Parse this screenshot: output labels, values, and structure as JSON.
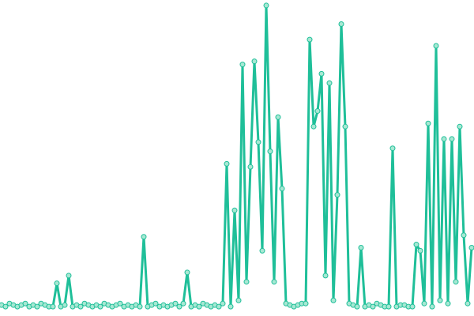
{
  "chart_data": {
    "type": "line",
    "x": [
      0,
      1,
      2,
      3,
      4,
      5,
      6,
      7,
      8,
      9,
      10,
      11,
      12,
      13,
      14,
      15,
      16,
      17,
      18,
      19,
      20,
      21,
      22,
      23,
      24,
      25,
      26,
      27,
      28,
      29,
      30,
      31,
      32,
      33,
      34,
      35,
      36,
      37,
      38,
      39,
      40,
      41,
      42,
      43,
      44,
      45,
      46,
      47,
      48,
      49,
      50,
      51,
      52,
      53,
      54,
      55,
      56,
      57,
      58,
      59,
      60,
      61,
      62,
      63,
      64,
      65,
      66,
      67,
      68,
      69,
      70,
      71,
      72,
      73,
      74,
      75,
      76,
      77,
      78,
      79,
      80,
      81,
      82,
      83,
      84,
      85,
      86,
      87,
      88,
      89,
      90,
      91,
      92,
      93,
      94,
      95,
      96,
      97,
      98,
      99,
      100,
      101,
      102,
      103,
      104,
      105,
      106,
      107,
      108,
      109,
      110,
      111,
      112,
      113,
      114,
      115,
      116,
      117,
      118,
      119
    ],
    "series": [
      {
        "color": "#1fbf99",
        "marker_fill": "#a7e8d3",
        "values": [
          2.5,
          2,
          3,
          2.5,
          2,
          2.5,
          3,
          2,
          2.5,
          2,
          3,
          2.5,
          2,
          2,
          9.5,
          2,
          2.5,
          12,
          2,
          2.5,
          2,
          3,
          2.5,
          2,
          2.5,
          2,
          3,
          2.5,
          2,
          2.5,
          3,
          2,
          2.5,
          2,
          2.5,
          2,
          24.5,
          2,
          2.5,
          3,
          2,
          2.5,
          2,
          2.5,
          3,
          2,
          3,
          13,
          2,
          2.5,
          2,
          3,
          2.5,
          2,
          2.5,
          2,
          3,
          48,
          2,
          33,
          4,
          80,
          10,
          47,
          81,
          55,
          20,
          99,
          52,
          10,
          63,
          40,
          3,
          2.5,
          2,
          2.5,
          3,
          3,
          88,
          60,
          65,
          77,
          12,
          74,
          4,
          38,
          93,
          60,
          3,
          2.5,
          2,
          21,
          2,
          2.5,
          2,
          3,
          2.5,
          2,
          2,
          53,
          2,
          2.5,
          2.5,
          2,
          2,
          22,
          20,
          3,
          61,
          2,
          86,
          4,
          56,
          3,
          56,
          10,
          60,
          25,
          3,
          21
        ]
      }
    ],
    "xlim": [
      0,
      119
    ],
    "ylim": [
      0,
      100
    ]
  }
}
